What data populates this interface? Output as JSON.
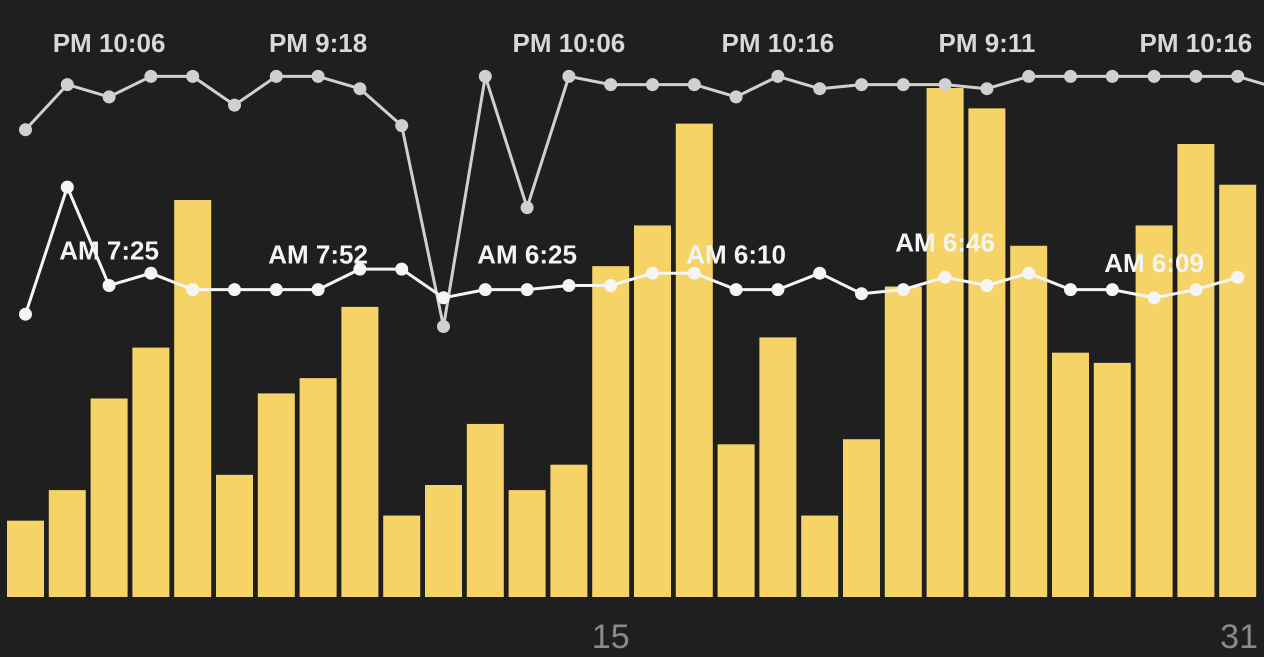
{
  "chart_data": {
    "type": "bar",
    "x": [
      1,
      2,
      3,
      4,
      5,
      6,
      7,
      8,
      9,
      10,
      11,
      12,
      13,
      14,
      15,
      16,
      17,
      18,
      19,
      20,
      21,
      22,
      23,
      24,
      25,
      26,
      27,
      28,
      29,
      30,
      31
    ],
    "x_tick_labels": [
      "15",
      "31"
    ],
    "x_tick_positions": [
      15,
      31
    ],
    "bar_color": "#f5d366",
    "line_color_bedtime": "#d0d0d0",
    "line_color_wake": "#f5f5f5",
    "background": "#1f1f1f",
    "grid": false,
    "series": [
      {
        "kind": "bar",
        "values": [
          0.15,
          0.21,
          0.39,
          0.49,
          0.78,
          0.24,
          0.4,
          0.43,
          0.57,
          0.16,
          0.22,
          0.34,
          0.21,
          0.26,
          0.65,
          0.73,
          0.93,
          0.3,
          0.51,
          0.16,
          0.31,
          0.61,
          1.0,
          0.96,
          0.69,
          0.48,
          0.46,
          0.73,
          0.89,
          0.81,
          0.0
        ]
      },
      {
        "kind": "line",
        "role": "bedtime",
        "values": [
          0.83,
          0.94,
          0.91,
          0.96,
          0.96,
          0.89,
          0.96,
          0.96,
          0.93,
          0.84,
          0.35,
          0.96,
          0.64,
          0.96,
          0.94,
          0.94,
          0.94,
          0.91,
          0.96,
          0.93,
          0.94,
          0.94,
          0.94,
          0.93,
          0.96,
          0.96,
          0.96,
          0.96,
          0.96,
          0.96,
          0.93
        ],
        "labels": [
          {
            "x": 3,
            "text": "PM 10:06"
          },
          {
            "x": 8,
            "text": "PM 9:18"
          },
          {
            "x": 14,
            "text": "PM 10:06"
          },
          {
            "x": 19,
            "text": "PM 10:16"
          },
          {
            "x": 24,
            "text": "PM 9:11"
          },
          {
            "x": 29,
            "text": "PM 10:16"
          }
        ]
      },
      {
        "kind": "line",
        "role": "wake",
        "values": [
          0.38,
          0.69,
          0.45,
          0.48,
          0.44,
          0.44,
          0.44,
          0.44,
          0.49,
          0.49,
          0.42,
          0.44,
          0.44,
          0.45,
          0.45,
          0.48,
          0.48,
          0.44,
          0.44,
          0.48,
          0.43,
          0.44,
          0.47,
          0.45,
          0.48,
          0.44,
          0.44,
          0.42,
          0.44,
          0.47,
          0.0
        ],
        "labels": [
          {
            "x": 3,
            "text": "AM 7:25"
          },
          {
            "x": 8,
            "text": "AM 7:52"
          },
          {
            "x": 13,
            "text": "AM 6:25"
          },
          {
            "x": 18,
            "text": "AM 6:10"
          },
          {
            "x": 23,
            "text": "AM 6:46"
          },
          {
            "x": 28,
            "text": "AM 6:09"
          }
        ]
      }
    ]
  }
}
